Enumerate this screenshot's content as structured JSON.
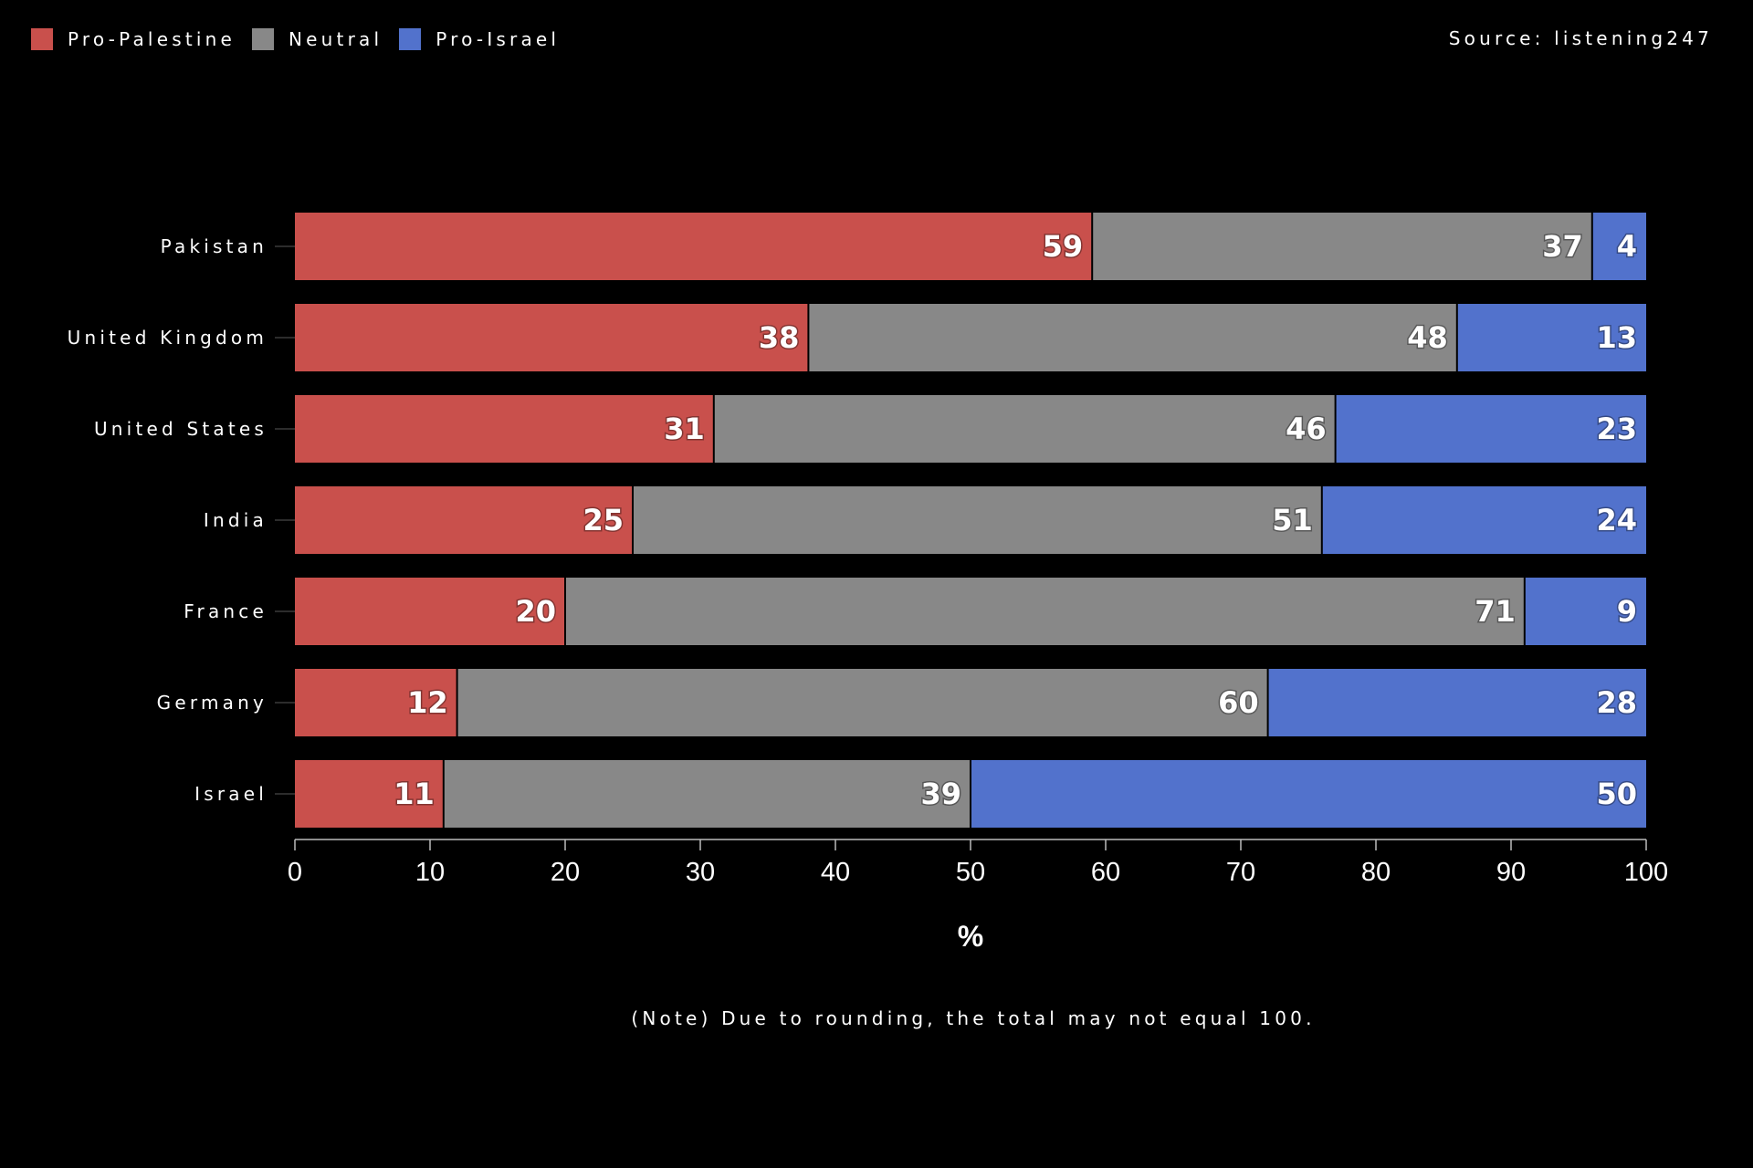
{
  "legend": {
    "items": [
      {
        "label": "Pro-Palestine",
        "color": "#c9504c"
      },
      {
        "label": "Neutral",
        "color": "#888888"
      },
      {
        "label": "Pro-Israel",
        "color": "#5272cc"
      }
    ]
  },
  "source": "Source: listening247",
  "note": "(Note) Due to rounding, the total may not equal 100.",
  "chart_data": {
    "type": "bar",
    "orientation": "horizontal",
    "stacked": true,
    "categories": [
      "Pakistan",
      "United Kingdom",
      "United States",
      "India",
      "France",
      "Germany",
      "Israel"
    ],
    "series": [
      {
        "name": "Pro-Palestine",
        "color": "#c9504c",
        "values": [
          59,
          38,
          31,
          25,
          20,
          12,
          11
        ]
      },
      {
        "name": "Neutral",
        "color": "#888888",
        "values": [
          37,
          48,
          46,
          51,
          71,
          60,
          39
        ]
      },
      {
        "name": "Pro-Israel",
        "color": "#5272cc",
        "values": [
          4,
          13,
          23,
          24,
          9,
          28,
          50
        ]
      }
    ],
    "xlabel": "%",
    "ylabel": "",
    "xlim": [
      0,
      100
    ],
    "xticks": [
      0,
      10,
      20,
      30,
      40,
      50,
      60,
      70,
      80,
      90,
      100
    ],
    "legend_position": "top-left",
    "grid": false
  }
}
